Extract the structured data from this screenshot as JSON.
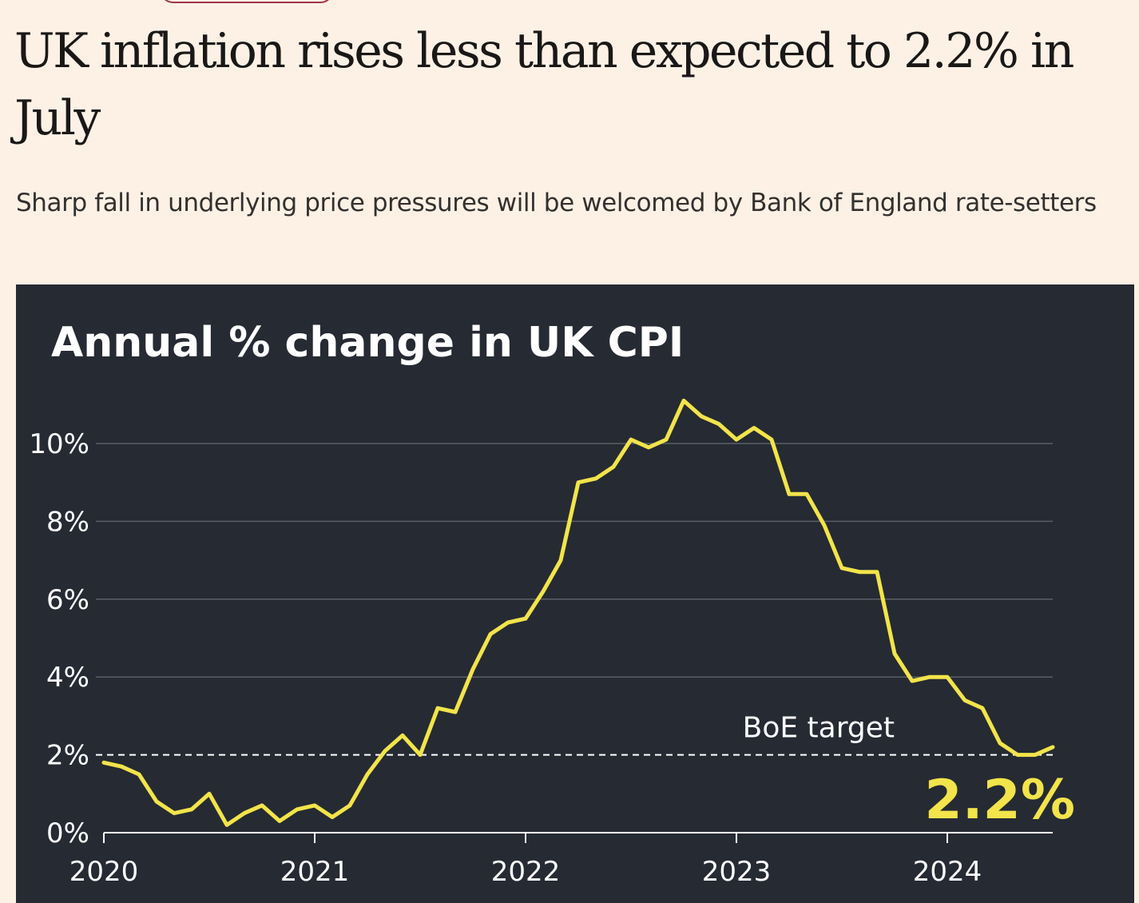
{
  "article": {
    "headline": "UK inflation rises less than expected to 2.2% in July",
    "standfirst": "Sharp fall in underlying price pressures will be welcomed by Bank of England rate-setters"
  },
  "colors": {
    "page_background": "#fdf1e6",
    "chart_background": "#262a33",
    "series_line": "#f2e44a",
    "gridline": "#5a5e68",
    "target_line": "#ffffff",
    "text_light": "#ffffff",
    "pill_border": "#a0354a"
  },
  "chart_data": {
    "type": "line",
    "title": "Annual % change in UK CPI",
    "xlabel": "",
    "ylabel": "",
    "xlim": [
      "2020-01",
      "2024-07"
    ],
    "ylim": [
      0,
      11.1
    ],
    "y_ticks": [
      {
        "value": 0,
        "label": "0%"
      },
      {
        "value": 2,
        "label": "2%"
      },
      {
        "value": 4,
        "label": "4%"
      },
      {
        "value": 6,
        "label": "6%"
      },
      {
        "value": 8,
        "label": "8%"
      },
      {
        "value": 10,
        "label": "10%"
      }
    ],
    "x_ticks": [
      {
        "value": "2020-01",
        "label": "2020"
      },
      {
        "value": "2021-01",
        "label": "2021"
      },
      {
        "value": "2022-01",
        "label": "2022"
      },
      {
        "value": "2023-01",
        "label": "2023"
      },
      {
        "value": "2024-01",
        "label": "2024"
      }
    ],
    "grid": true,
    "reference_line": {
      "value": 2,
      "label": "BoE target",
      "style": "dashed"
    },
    "last_value_label": "2.2%",
    "series": [
      {
        "color": "#f2e44a",
        "x": [
          "2020-01",
          "2020-02",
          "2020-03",
          "2020-04",
          "2020-05",
          "2020-06",
          "2020-07",
          "2020-08",
          "2020-09",
          "2020-10",
          "2020-11",
          "2020-12",
          "2021-01",
          "2021-02",
          "2021-03",
          "2021-04",
          "2021-05",
          "2021-06",
          "2021-07",
          "2021-08",
          "2021-09",
          "2021-10",
          "2021-11",
          "2021-12",
          "2022-01",
          "2022-02",
          "2022-03",
          "2022-04",
          "2022-05",
          "2022-06",
          "2022-07",
          "2022-08",
          "2022-09",
          "2022-10",
          "2022-11",
          "2022-12",
          "2023-01",
          "2023-02",
          "2023-03",
          "2023-04",
          "2023-05",
          "2023-06",
          "2023-07",
          "2023-08",
          "2023-09",
          "2023-10",
          "2023-11",
          "2023-12",
          "2024-01",
          "2024-02",
          "2024-03",
          "2024-04",
          "2024-05",
          "2024-06",
          "2024-07"
        ],
        "values": [
          1.8,
          1.7,
          1.5,
          0.8,
          0.5,
          0.6,
          1.0,
          0.2,
          0.5,
          0.7,
          0.3,
          0.6,
          0.7,
          0.4,
          0.7,
          1.5,
          2.1,
          2.5,
          2.0,
          3.2,
          3.1,
          4.2,
          5.1,
          5.4,
          5.5,
          6.2,
          7.0,
          9.0,
          9.1,
          9.4,
          10.1,
          9.9,
          10.1,
          11.1,
          10.7,
          10.5,
          10.1,
          10.4,
          10.1,
          8.7,
          8.7,
          7.9,
          6.8,
          6.7,
          6.7,
          4.6,
          3.9,
          4.0,
          4.0,
          3.4,
          3.2,
          2.3,
          2.0,
          2.0,
          2.2
        ]
      }
    ]
  }
}
